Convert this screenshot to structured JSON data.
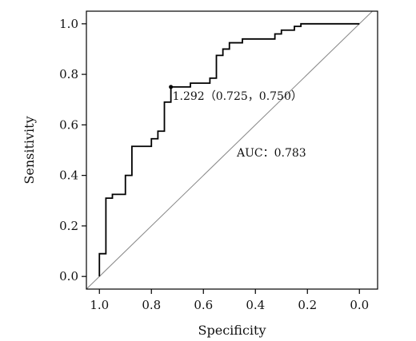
{
  "chart_data": {
    "type": "line",
    "title": "",
    "xlabel": "Specificity",
    "ylabel": "Sensitivity",
    "x_reversed": true,
    "xlim": [
      1.05,
      -0.07
    ],
    "ylim": [
      -0.05,
      1.05
    ],
    "x_ticks": [
      1.0,
      0.8,
      0.6,
      0.4,
      0.2,
      0.0
    ],
    "x_tick_labels": [
      "1.0",
      "0.8",
      "0.6",
      "0.4",
      "0.2",
      "0.0"
    ],
    "y_ticks": [
      0.0,
      0.2,
      0.4,
      0.6,
      0.8,
      1.0
    ],
    "y_tick_labels": [
      "0.0",
      "0.2",
      "0.4",
      "0.6",
      "0.8",
      "1.0"
    ],
    "grid": false,
    "series": [
      {
        "values": [
          {
            "x": 1.0,
            "y": 0.0
          },
          {
            "x": 1.0,
            "y": 0.09
          },
          {
            "x": 0.975,
            "y": 0.09
          },
          {
            "x": 0.975,
            "y": 0.31
          },
          {
            "x": 0.95,
            "y": 0.31
          },
          {
            "x": 0.95,
            "y": 0.325
          },
          {
            "x": 0.9,
            "y": 0.325
          },
          {
            "x": 0.9,
            "y": 0.4
          },
          {
            "x": 0.875,
            "y": 0.4
          },
          {
            "x": 0.875,
            "y": 0.515
          },
          {
            "x": 0.8,
            "y": 0.515
          },
          {
            "x": 0.8,
            "y": 0.545
          },
          {
            "x": 0.775,
            "y": 0.545
          },
          {
            "x": 0.775,
            "y": 0.575
          },
          {
            "x": 0.75,
            "y": 0.575
          },
          {
            "x": 0.75,
            "y": 0.69
          },
          {
            "x": 0.725,
            "y": 0.69
          },
          {
            "x": 0.725,
            "y": 0.75
          },
          {
            "x": 0.65,
            "y": 0.75
          },
          {
            "x": 0.65,
            "y": 0.765
          },
          {
            "x": 0.575,
            "y": 0.765
          },
          {
            "x": 0.575,
            "y": 0.785
          },
          {
            "x": 0.55,
            "y": 0.785
          },
          {
            "x": 0.55,
            "y": 0.875
          },
          {
            "x": 0.525,
            "y": 0.875
          },
          {
            "x": 0.525,
            "y": 0.9
          },
          {
            "x": 0.5,
            "y": 0.9
          },
          {
            "x": 0.5,
            "y": 0.925
          },
          {
            "x": 0.45,
            "y": 0.925
          },
          {
            "x": 0.45,
            "y": 0.94
          },
          {
            "x": 0.325,
            "y": 0.94
          },
          {
            "x": 0.325,
            "y": 0.96
          },
          {
            "x": 0.3,
            "y": 0.96
          },
          {
            "x": 0.3,
            "y": 0.975
          },
          {
            "x": 0.25,
            "y": 0.975
          },
          {
            "x": 0.25,
            "y": 0.99
          },
          {
            "x": 0.225,
            "y": 0.99
          },
          {
            "x": 0.225,
            "y": 1.0
          },
          {
            "x": 0.0,
            "y": 1.0
          }
        ]
      }
    ],
    "reference_line": [
      {
        "x": 1.05,
        "y": -0.05
      },
      {
        "x": -0.05,
        "y": 1.05
      }
    ],
    "highlight_point": {
      "x": 0.725,
      "y": 0.75
    },
    "annotations": {
      "cutoff": "1.292（0.725，0.750）",
      "auc": "AUC：0.783"
    },
    "colors": {
      "curve": "#000000",
      "reference": "#888888",
      "axes": "#000000"
    }
  }
}
